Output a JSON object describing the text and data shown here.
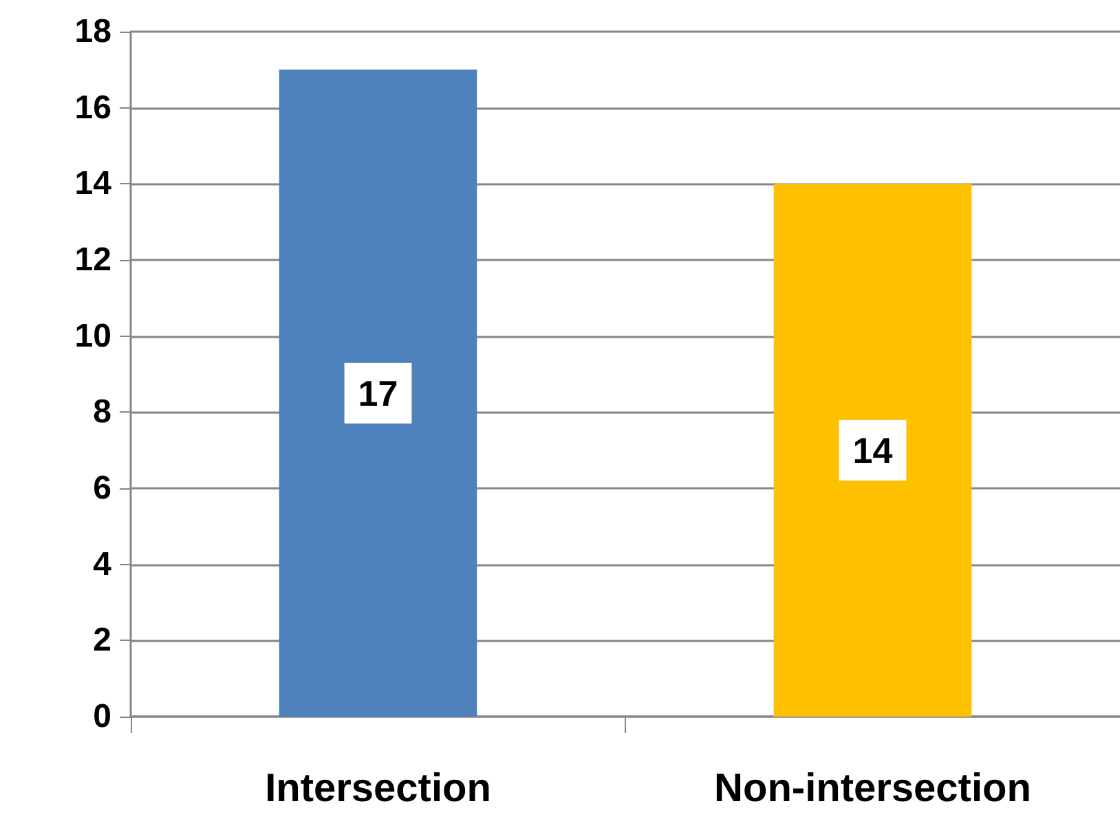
{
  "chart_data": {
    "type": "bar",
    "categories": [
      "Intersection",
      "Non-intersection"
    ],
    "values": [
      17,
      14
    ],
    "colors": [
      "#4f81bd",
      "#ffc000"
    ],
    "ylim": [
      0,
      18
    ],
    "yticks": [
      0,
      2,
      4,
      6,
      8,
      10,
      12,
      14,
      16,
      18
    ],
    "grid": "y",
    "data_labels": true
  }
}
